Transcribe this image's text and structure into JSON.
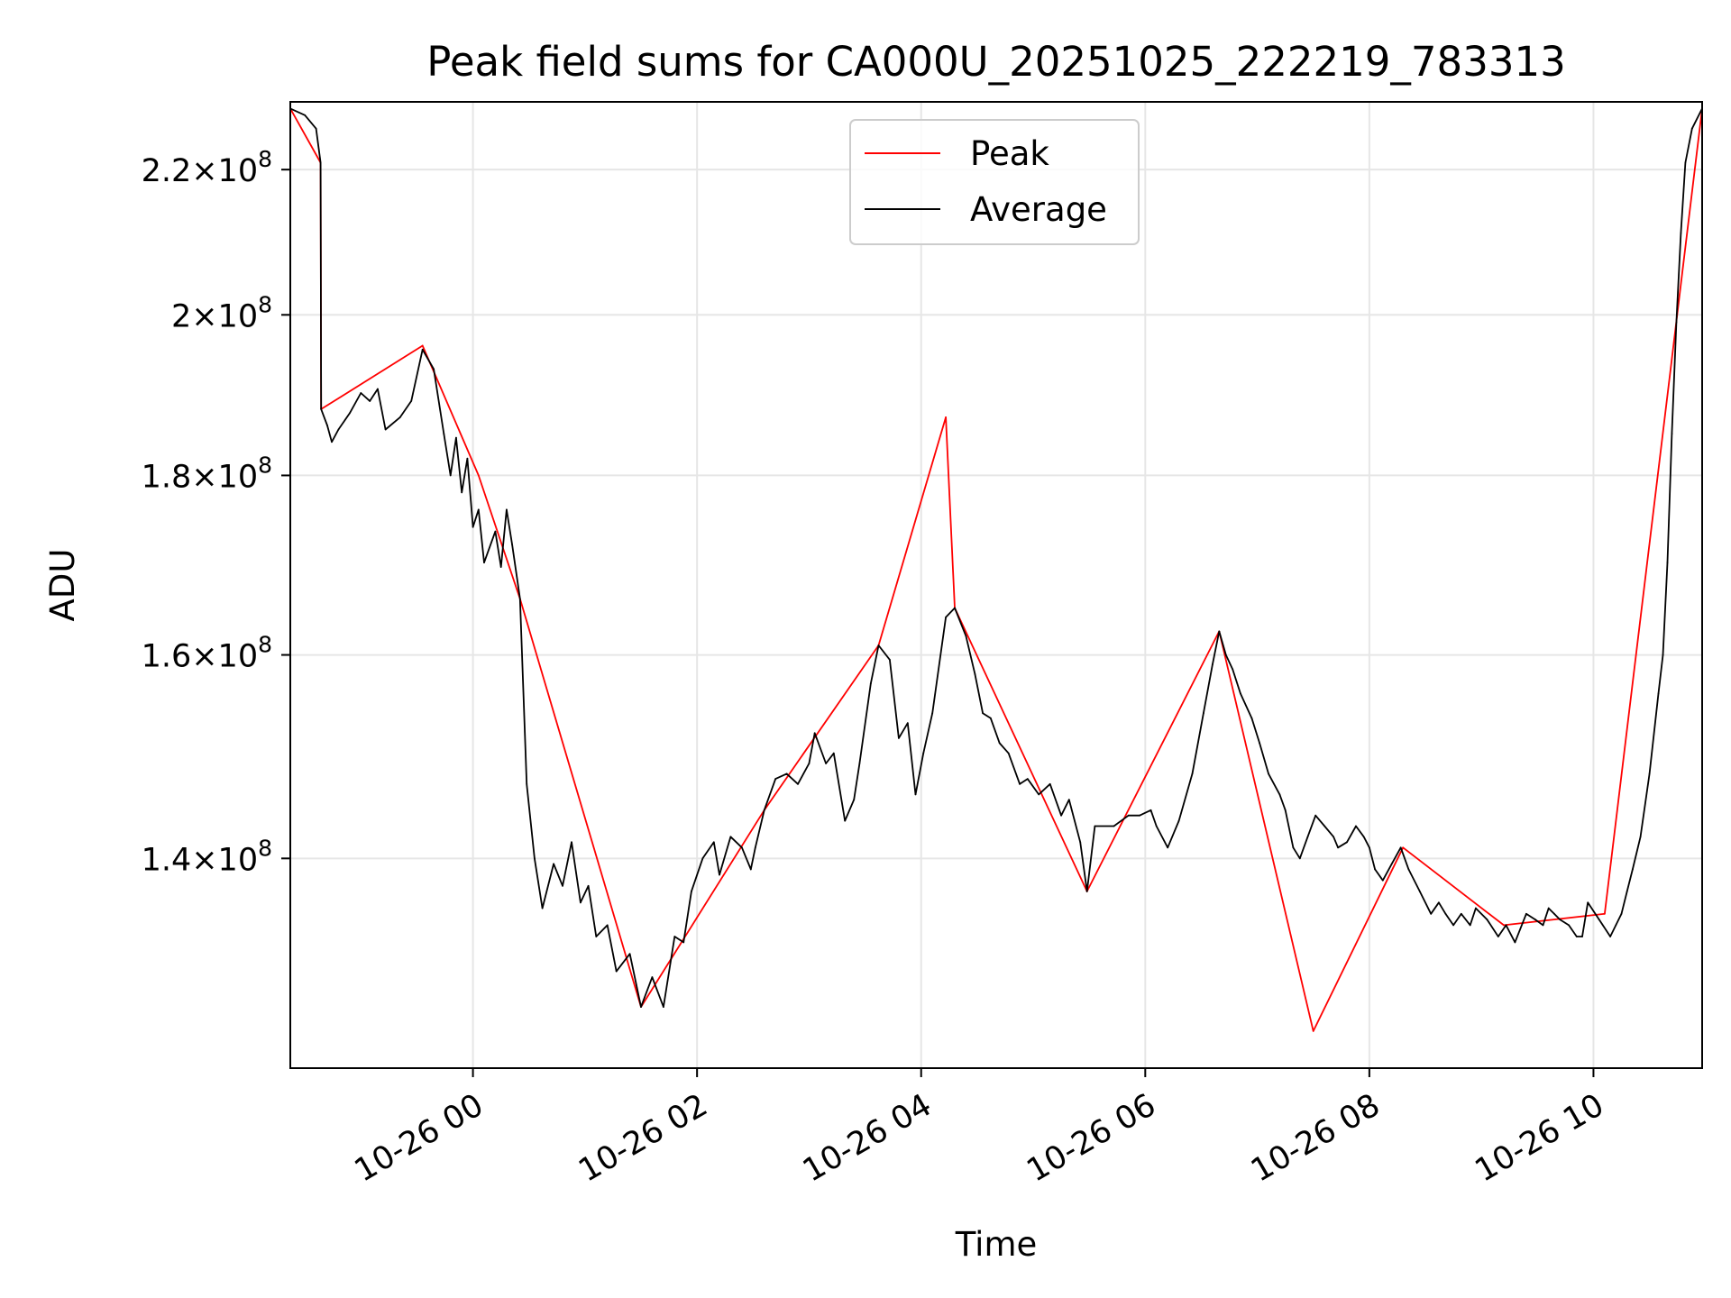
{
  "chart_data": {
    "type": "line",
    "title": "Peak field sums for CA000U_20251025_222219_783313",
    "xlabel": "Time",
    "ylabel": "ADU",
    "yscale": "log",
    "grid": true,
    "legend_position": "top-center",
    "xlim": [
      -1.63,
      10.97
    ],
    "ylim": [
      122000000.0,
      230000000.0
    ],
    "x_ticks": [
      {
        "value": 0,
        "label": "10-26 00"
      },
      {
        "value": 2,
        "label": "10-26 02"
      },
      {
        "value": 4,
        "label": "10-26 04"
      },
      {
        "value": 6,
        "label": "10-26 06"
      },
      {
        "value": 8,
        "label": "10-26 08"
      },
      {
        "value": 10,
        "label": "10-26 10"
      }
    ],
    "y_ticks": [
      {
        "value": 140000000.0,
        "mantissa": "1.4",
        "exp": "8"
      },
      {
        "value": 160000000.0,
        "mantissa": "1.6",
        "exp": "8"
      },
      {
        "value": 180000000.0,
        "mantissa": "1.8",
        "exp": "8"
      },
      {
        "value": 200000000.0,
        "mantissa": "2",
        "exp": "8"
      },
      {
        "value": 220000000.0,
        "mantissa": "2.2",
        "exp": "8"
      }
    ],
    "x_unit": "hours since 2025-10-26 00:00",
    "series": [
      {
        "name": "Average",
        "color": "#000000",
        "points": [
          [
            -1.63,
            229000000.0
          ],
          [
            -1.5,
            228000000.0
          ],
          [
            -1.4,
            226000000.0
          ],
          [
            -1.36,
            221000000.0
          ],
          [
            -1.355,
            188000000.0
          ],
          [
            -1.3,
            186000000.0
          ],
          [
            -1.26,
            184000000.0
          ],
          [
            -1.2,
            185500000.0
          ],
          [
            -1.1,
            187500000.0
          ],
          [
            -1.0,
            190000000.0
          ],
          [
            -0.92,
            189000000.0
          ],
          [
            -0.85,
            190500000.0
          ],
          [
            -0.78,
            185500000.0
          ],
          [
            -0.65,
            187000000.0
          ],
          [
            -0.55,
            189000000.0
          ],
          [
            -0.45,
            195500000.0
          ],
          [
            -0.35,
            193000000.0
          ],
          [
            -0.26,
            185000000.0
          ],
          [
            -0.2,
            180000000.0
          ],
          [
            -0.15,
            184500000.0
          ],
          [
            -0.1,
            178000000.0
          ],
          [
            -0.05,
            182000000.0
          ],
          [
            0.0,
            174000000.0
          ],
          [
            0.05,
            176000000.0
          ],
          [
            0.1,
            170000000.0
          ],
          [
            0.2,
            173500000.0
          ],
          [
            0.25,
            169500000.0
          ],
          [
            0.3,
            176000000.0
          ],
          [
            0.35,
            172000000.0
          ],
          [
            0.42,
            166000000.0
          ],
          [
            0.48,
            147000000.0
          ],
          [
            0.55,
            140000000.0
          ],
          [
            0.62,
            135500000.0
          ],
          [
            0.72,
            139500000.0
          ],
          [
            0.8,
            137500000.0
          ],
          [
            0.88,
            141500000.0
          ],
          [
            0.96,
            136000000.0
          ],
          [
            1.03,
            137500000.0
          ],
          [
            1.1,
            133000000.0
          ],
          [
            1.2,
            134000000.0
          ],
          [
            1.28,
            130000000.0
          ],
          [
            1.4,
            131500000.0
          ],
          [
            1.5,
            127000000.0
          ],
          [
            1.6,
            129500000.0
          ],
          [
            1.7,
            127000000.0
          ],
          [
            1.8,
            133000000.0
          ],
          [
            1.88,
            132500000.0
          ],
          [
            1.95,
            137000000.0
          ],
          [
            2.05,
            140000000.0
          ],
          [
            2.15,
            141500000.0
          ],
          [
            2.2,
            138500000.0
          ],
          [
            2.3,
            142000000.0
          ],
          [
            2.4,
            141000000.0
          ],
          [
            2.48,
            139000000.0
          ],
          [
            2.52,
            141000000.0
          ],
          [
            2.6,
            144500000.0
          ],
          [
            2.7,
            147500000.0
          ],
          [
            2.8,
            148000000.0
          ],
          [
            2.9,
            147000000.0
          ],
          [
            3.0,
            149000000.0
          ],
          [
            3.05,
            152000000.0
          ],
          [
            3.15,
            149000000.0
          ],
          [
            3.22,
            150000000.0
          ],
          [
            3.32,
            143500000.0
          ],
          [
            3.4,
            145500000.0
          ],
          [
            3.45,
            149000000.0
          ],
          [
            3.55,
            157000000.0
          ],
          [
            3.62,
            161000000.0
          ],
          [
            3.72,
            159500000.0
          ],
          [
            3.8,
            151500000.0
          ],
          [
            3.88,
            153000000.0
          ],
          [
            3.95,
            146000000.0
          ],
          [
            4.02,
            150000000.0
          ],
          [
            4.1,
            154000000.0
          ],
          [
            4.22,
            164000000.0
          ],
          [
            4.3,
            165000000.0
          ],
          [
            4.4,
            162000000.0
          ],
          [
            4.48,
            158000000.0
          ],
          [
            4.55,
            154000000.0
          ],
          [
            4.62,
            153500000.0
          ],
          [
            4.7,
            151000000.0
          ],
          [
            4.78,
            150000000.0
          ],
          [
            4.88,
            147000000.0
          ],
          [
            4.95,
            147500000.0
          ],
          [
            5.05,
            146000000.0
          ],
          [
            5.15,
            147000000.0
          ],
          [
            5.25,
            144000000.0
          ],
          [
            5.32,
            145500000.0
          ],
          [
            5.42,
            141500000.0
          ],
          [
            5.48,
            137000000.0
          ],
          [
            5.55,
            143000000.0
          ],
          [
            5.72,
            143000000.0
          ],
          [
            5.85,
            144000000.0
          ],
          [
            5.95,
            144000000.0
          ],
          [
            6.05,
            144500000.0
          ],
          [
            6.1,
            143000000.0
          ],
          [
            6.2,
            141000000.0
          ],
          [
            6.3,
            143500000.0
          ],
          [
            6.42,
            148000000.0
          ],
          [
            6.52,
            154000000.0
          ],
          [
            6.6,
            159000000.0
          ],
          [
            6.66,
            162500000.0
          ],
          [
            6.72,
            160000000.0
          ],
          [
            6.78,
            158500000.0
          ],
          [
            6.85,
            156000000.0
          ],
          [
            6.95,
            153500000.0
          ],
          [
            7.02,
            151000000.0
          ],
          [
            7.1,
            148000000.0
          ],
          [
            7.2,
            146000000.0
          ],
          [
            7.25,
            144500000.0
          ],
          [
            7.28,
            143000000.0
          ],
          [
            7.32,
            141000000.0
          ],
          [
            7.38,
            140000000.0
          ],
          [
            7.45,
            142000000.0
          ],
          [
            7.52,
            144000000.0
          ],
          [
            7.6,
            143000000.0
          ],
          [
            7.68,
            142000000.0
          ],
          [
            7.72,
            141000000.0
          ],
          [
            7.8,
            141500000.0
          ],
          [
            7.88,
            143000000.0
          ],
          [
            7.95,
            142000000.0
          ],
          [
            8.0,
            141000000.0
          ],
          [
            8.05,
            139000000.0
          ],
          [
            8.12,
            138000000.0
          ],
          [
            8.2,
            139500000.0
          ],
          [
            8.28,
            141000000.0
          ],
          [
            8.35,
            139000000.0
          ],
          [
            8.45,
            137000000.0
          ],
          [
            8.55,
            135000000.0
          ],
          [
            8.62,
            136000000.0
          ],
          [
            8.68,
            135000000.0
          ],
          [
            8.75,
            134000000.0
          ],
          [
            8.82,
            135000000.0
          ],
          [
            8.9,
            134000000.0
          ],
          [
            8.95,
            135500000.0
          ],
          [
            9.05,
            134500000.0
          ],
          [
            9.15,
            133000000.0
          ],
          [
            9.22,
            134000000.0
          ],
          [
            9.3,
            132500000.0
          ],
          [
            9.4,
            135000000.0
          ],
          [
            9.48,
            134500000.0
          ],
          [
            9.55,
            134000000.0
          ],
          [
            9.6,
            135500000.0
          ],
          [
            9.65,
            135000000.0
          ],
          [
            9.7,
            134500000.0
          ],
          [
            9.78,
            134000000.0
          ],
          [
            9.85,
            133000000.0
          ],
          [
            9.9,
            133000000.0
          ],
          [
            9.95,
            136000000.0
          ],
          [
            10.05,
            134500000.0
          ],
          [
            10.15,
            133000000.0
          ],
          [
            10.2,
            134000000.0
          ],
          [
            10.25,
            135000000.0
          ],
          [
            10.3,
            137000000.0
          ],
          [
            10.35,
            139000000.0
          ],
          [
            10.42,
            142000000.0
          ],
          [
            10.5,
            148000000.0
          ],
          [
            10.58,
            156000000.0
          ],
          [
            10.62,
            160000000.0
          ],
          [
            10.66,
            170000000.0
          ],
          [
            10.7,
            185000000.0
          ],
          [
            10.74,
            199000000.0
          ],
          [
            10.78,
            211000000.0
          ],
          [
            10.82,
            221000000.0
          ],
          [
            10.88,
            226000000.0
          ],
          [
            10.97,
            229000000.0
          ]
        ]
      },
      {
        "name": "Peak",
        "color": "#ff0000",
        "points": [
          [
            -1.63,
            229000000.0
          ],
          [
            -1.36,
            221000000.0
          ],
          [
            -1.355,
            188000000.0
          ],
          [
            -0.45,
            196000000.0
          ],
          [
            0.05,
            180000000.0
          ],
          [
            0.42,
            166000000.0
          ],
          [
            1.5,
            127000000.0
          ],
          [
            2.6,
            144500000.0
          ],
          [
            3.62,
            161000000.0
          ],
          [
            4.22,
            187000000.0
          ],
          [
            4.3,
            165000000.0
          ],
          [
            5.48,
            137000000.0
          ],
          [
            6.66,
            162500000.0
          ],
          [
            7.5,
            125000000.0
          ],
          [
            8.3,
            141000000.0
          ],
          [
            9.2,
            134000000.0
          ],
          [
            10.1,
            135000000.0
          ],
          [
            10.97,
            229000000.0
          ]
        ]
      }
    ],
    "legend": [
      {
        "label": "Peak",
        "color": "#ff0000"
      },
      {
        "label": "Average",
        "color": "#000000"
      }
    ]
  }
}
